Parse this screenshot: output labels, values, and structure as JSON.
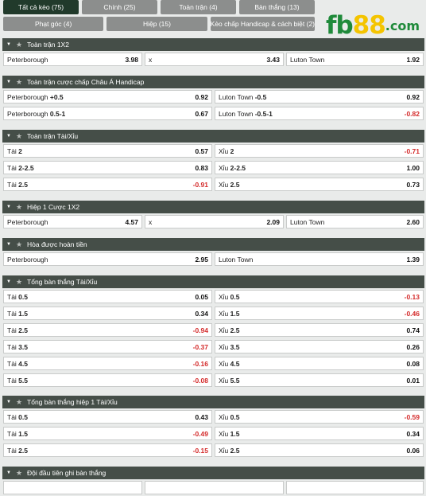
{
  "tabs_row1": [
    "Tất cả kèo (75)",
    "Chính (25)",
    "Toàn trận (4)",
    "Bàn thắng (13)"
  ],
  "tabs_row2": [
    "Phạt góc (4)",
    "Hiệp (15)",
    "Kèo chấp Handicap & cách biệt (2)"
  ],
  "logo": {
    "text_a": "fb",
    "text_b": "88",
    "domain": ".com"
  },
  "sections": [
    {
      "title": "Toàn trận 1X2",
      "layout": "three",
      "rows": [
        [
          {
            "label": "Peterborough",
            "bold": "",
            "odd": "3.98"
          },
          {
            "label": "x",
            "bold": "",
            "odd": "3.43"
          },
          {
            "label": "Luton Town",
            "bold": "",
            "odd": "1.92"
          }
        ]
      ]
    },
    {
      "title": "Toàn trận cược chấp Châu Á Handicap",
      "layout": "two",
      "rows": [
        [
          {
            "label": "Peterborough ",
            "bold": "+0.5",
            "odd": "0.92"
          },
          {
            "label": "Luton Town ",
            "bold": "-0.5",
            "odd": "0.92"
          }
        ],
        [
          {
            "label": "Peterborough ",
            "bold": "0.5-1",
            "odd": "0.67"
          },
          {
            "label": "Luton Town ",
            "bold": "-0.5-1",
            "odd": "-0.82"
          }
        ]
      ]
    },
    {
      "title": "Toàn trận Tài/Xỉu",
      "layout": "two",
      "rows": [
        [
          {
            "label": "Tài ",
            "bold": "2",
            "odd": "0.57"
          },
          {
            "label": "Xỉu ",
            "bold": "2",
            "odd": "-0.71"
          }
        ],
        [
          {
            "label": "Tài ",
            "bold": "2-2.5",
            "odd": "0.83"
          },
          {
            "label": "Xỉu ",
            "bold": "2-2.5",
            "odd": "1.00"
          }
        ],
        [
          {
            "label": "Tài ",
            "bold": "2.5",
            "odd": "-0.91"
          },
          {
            "label": "Xỉu ",
            "bold": "2.5",
            "odd": "0.73"
          }
        ]
      ]
    },
    {
      "title": "Hiệp 1 Cược 1X2",
      "layout": "three",
      "rows": [
        [
          {
            "label": "Peterborough",
            "bold": "",
            "odd": "4.57"
          },
          {
            "label": "x",
            "bold": "",
            "odd": "2.09"
          },
          {
            "label": "Luton Town",
            "bold": "",
            "odd": "2.60"
          }
        ]
      ]
    },
    {
      "title": "Hòa được hoàn tiền",
      "layout": "two",
      "rows": [
        [
          {
            "label": "Peterborough",
            "bold": "",
            "odd": "2.95"
          },
          {
            "label": "Luton Town",
            "bold": "",
            "odd": "1.39"
          }
        ]
      ]
    },
    {
      "title": "Tổng bàn thắng Tài/Xỉu",
      "layout": "two",
      "rows": [
        [
          {
            "label": "Tài ",
            "bold": "0.5",
            "odd": "0.05"
          },
          {
            "label": "Xỉu ",
            "bold": "0.5",
            "odd": "-0.13"
          }
        ],
        [
          {
            "label": "Tài ",
            "bold": "1.5",
            "odd": "0.34"
          },
          {
            "label": "Xỉu ",
            "bold": "1.5",
            "odd": "-0.46"
          }
        ],
        [
          {
            "label": "Tài ",
            "bold": "2.5",
            "odd": "-0.94"
          },
          {
            "label": "Xỉu ",
            "bold": "2.5",
            "odd": "0.74"
          }
        ],
        [
          {
            "label": "Tài ",
            "bold": "3.5",
            "odd": "-0.37"
          },
          {
            "label": "Xỉu ",
            "bold": "3.5",
            "odd": "0.26"
          }
        ],
        [
          {
            "label": "Tài ",
            "bold": "4.5",
            "odd": "-0.16"
          },
          {
            "label": "Xỉu ",
            "bold": "4.5",
            "odd": "0.08"
          }
        ],
        [
          {
            "label": "Tài ",
            "bold": "5.5",
            "odd": "-0.08"
          },
          {
            "label": "Xỉu ",
            "bold": "5.5",
            "odd": "0.01"
          }
        ]
      ]
    },
    {
      "title": "Tổng bàn thắng hiệp 1 Tài/Xỉu",
      "layout": "two",
      "rows": [
        [
          {
            "label": "Tài ",
            "bold": "0.5",
            "odd": "0.43"
          },
          {
            "label": "Xỉu ",
            "bold": "0.5",
            "odd": "-0.59"
          }
        ],
        [
          {
            "label": "Tài ",
            "bold": "1.5",
            "odd": "-0.49"
          },
          {
            "label": "Xỉu ",
            "bold": "1.5",
            "odd": "0.34"
          }
        ],
        [
          {
            "label": "Tài ",
            "bold": "2.5",
            "odd": "-0.15"
          },
          {
            "label": "Xỉu ",
            "bold": "2.5",
            "odd": "0.06"
          }
        ]
      ]
    },
    {
      "title": "Đội đầu tiên ghi bàn thắng",
      "layout": "three",
      "rows": [
        [
          {
            "label": "",
            "bold": "",
            "odd": ""
          },
          {
            "label": "",
            "bold": "",
            "odd": ""
          },
          {
            "label": "",
            "bold": "",
            "odd": ""
          }
        ]
      ]
    }
  ],
  "icons": {
    "collapse": "caret-down-icon",
    "favorite": "star-icon"
  },
  "colors": {
    "header_bg": "#454e48",
    "active_tab": "#213a2b",
    "tab_bg": "#8c8e8d",
    "negative": "#d42b2b"
  }
}
